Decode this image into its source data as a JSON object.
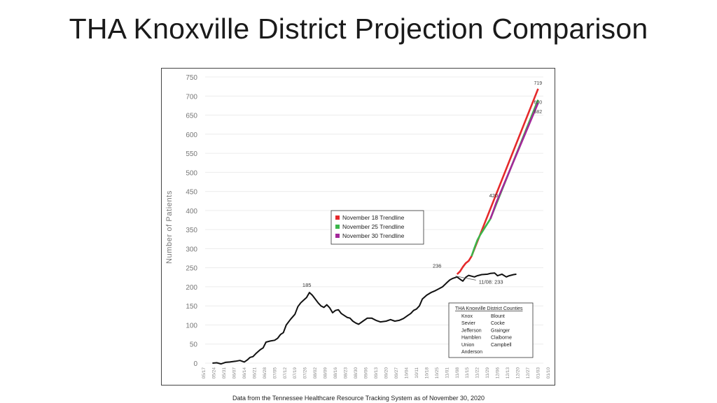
{
  "slide": {
    "title": "THA Knoxville District Projection Comparison",
    "footnote": "Data from the Tennessee Healthcare Resource Tracking System as of November 30, 2020"
  },
  "chart_data": {
    "type": "line",
    "title": "",
    "xlabel": "",
    "ylabel": "Number of Patients",
    "ylim": [
      0,
      750
    ],
    "yticks": [
      0,
      50,
      100,
      150,
      200,
      250,
      300,
      350,
      400,
      450,
      500,
      550,
      600,
      650,
      700,
      750
    ],
    "grid": "horizontal",
    "xtick_labels": [
      "05/17",
      "05/24",
      "05/31",
      "06/07",
      "06/14",
      "06/21",
      "06/28",
      "07/05",
      "07/12",
      "07/19",
      "07/26",
      "08/02",
      "08/09",
      "08/16",
      "08/23",
      "08/30",
      "09/06",
      "09/13",
      "09/20",
      "09/27",
      "10/04",
      "10/11",
      "10/18",
      "10/25",
      "11/01",
      "11/08",
      "11/15",
      "11/22",
      "11/29",
      "12/06",
      "12/13",
      "12/20",
      "12/27",
      "01/03",
      "01/10"
    ],
    "actual": {
      "color": "#111111",
      "points": [
        [
          "05/23",
          0
        ],
        [
          "05/26",
          1
        ],
        [
          "05/29",
          -2
        ],
        [
          "06/01",
          2
        ],
        [
          "06/04",
          3
        ],
        [
          "06/08",
          5
        ],
        [
          "06/11",
          7
        ],
        [
          "06/14",
          3
        ],
        [
          "06/16",
          8
        ],
        [
          "06/18",
          15
        ],
        [
          "06/20",
          17
        ],
        [
          "06/22",
          25
        ],
        [
          "06/25",
          35
        ],
        [
          "06/27",
          40
        ],
        [
          "06/29",
          55
        ],
        [
          "07/02",
          58
        ],
        [
          "07/05",
          60
        ],
        [
          "07/07",
          65
        ],
        [
          "07/09",
          75
        ],
        [
          "07/11",
          80
        ],
        [
          "07/13",
          100
        ],
        [
          "07/16",
          115
        ],
        [
          "07/19",
          128
        ],
        [
          "07/21",
          148
        ],
        [
          "07/23",
          158
        ],
        [
          "07/25",
          165
        ],
        [
          "07/27",
          172
        ],
        [
          "07/29",
          185
        ],
        [
          "07/31",
          178
        ],
        [
          "08/02",
          168
        ],
        [
          "08/04",
          158
        ],
        [
          "08/06",
          150
        ],
        [
          "08/08",
          146
        ],
        [
          "08/10",
          153
        ],
        [
          "08/12",
          145
        ],
        [
          "08/14",
          132
        ],
        [
          "08/16",
          138
        ],
        [
          "08/18",
          140
        ],
        [
          "08/20",
          130
        ],
        [
          "08/22",
          125
        ],
        [
          "08/24",
          120
        ],
        [
          "08/26",
          118
        ],
        [
          "08/28",
          110
        ],
        [
          "08/30",
          105
        ],
        [
          "09/01",
          102
        ],
        [
          "09/04",
          110
        ],
        [
          "09/07",
          118
        ],
        [
          "09/10",
          118
        ],
        [
          "09/13",
          112
        ],
        [
          "09/16",
          108
        ],
        [
          "09/20",
          110
        ],
        [
          "09/23",
          114
        ],
        [
          "09/26",
          110
        ],
        [
          "09/29",
          112
        ],
        [
          "10/02",
          117
        ],
        [
          "10/05",
          125
        ],
        [
          "10/07",
          130
        ],
        [
          "10/09",
          138
        ],
        [
          "10/11",
          142
        ],
        [
          "10/13",
          150
        ],
        [
          "10/15",
          168
        ],
        [
          "10/18",
          178
        ],
        [
          "10/21",
          185
        ],
        [
          "10/24",
          190
        ],
        [
          "10/27",
          196
        ],
        [
          "10/29",
          200
        ],
        [
          "11/01",
          211
        ],
        [
          "11/03",
          218
        ],
        [
          "11/05",
          222
        ],
        [
          "11/08",
          226
        ],
        [
          "11/10",
          220
        ],
        [
          "11/12",
          215
        ],
        [
          "11/14",
          225
        ],
        [
          "11/16",
          230
        ],
        [
          "11/18",
          228
        ],
        [
          "11/20",
          226
        ],
        [
          "11/22",
          229
        ],
        [
          "11/25",
          232
        ],
        [
          "11/29",
          233
        ],
        [
          "12/01",
          235
        ],
        [
          "12/04",
          236
        ],
        [
          "12/06",
          229
        ],
        [
          "12/09",
          233
        ],
        [
          "12/12",
          226
        ],
        [
          "12/14",
          229
        ],
        [
          "12/17",
          232
        ],
        [
          "12/19",
          233
        ]
      ]
    },
    "series": [
      {
        "name": "November 18 Trendline",
        "color": "#e5292b",
        "points": [
          [
            "11/08",
            233
          ],
          [
            "11/10",
            240
          ],
          [
            "11/12",
            252
          ],
          [
            "11/14",
            262
          ],
          [
            "11/16",
            268
          ],
          [
            "11/18",
            280
          ],
          [
            "01/03",
            719
          ]
        ],
        "end_label": "719"
      },
      {
        "name": "November 25 Trendline",
        "color": "#3bb54a",
        "points": [
          [
            "11/18",
            280
          ],
          [
            "11/20",
            302
          ],
          [
            "11/22",
            322
          ],
          [
            "11/24",
            336
          ],
          [
            "11/26",
            348
          ],
          [
            "11/28",
            360
          ],
          [
            "12/01",
            378
          ],
          [
            "01/03",
            690
          ]
        ],
        "end_label": "690"
      },
      {
        "name": "November 30 Trendline",
        "color": "#a3289a",
        "points": [
          [
            "12/01",
            378
          ],
          [
            "12/03",
            398
          ],
          [
            "12/05",
            420
          ],
          [
            "01/03",
            682
          ]
        ],
        "end_label": "682"
      }
    ],
    "annotations": [
      {
        "text": "185",
        "x": "07/29",
        "y": 185
      },
      {
        "text": "236",
        "x": "10/27",
        "y": 236
      },
      {
        "text": "420",
        "x": "12/05",
        "y": 420
      },
      {
        "text": "11/08: 233",
        "x": "11/22",
        "y": 212
      }
    ],
    "legend": {
      "position": "center",
      "entries": [
        "November 18 Trendline",
        "November 25 Trendline",
        "November 30 Trendline"
      ]
    },
    "counties_box": {
      "position": "bottom-right",
      "title": "THA Knoxville District Counties",
      "left": [
        "Knox",
        "Sevier",
        "Jefferson",
        "Hamblen",
        "Union",
        "Anderson"
      ],
      "right": [
        "Blount",
        "Cocke",
        "Grainger",
        "Claiborne",
        "Campbell"
      ]
    }
  }
}
